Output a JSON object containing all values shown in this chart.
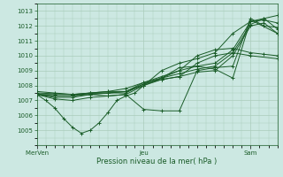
{
  "xlabel": "Pression niveau de la mer( hPa )",
  "background_color": "#cce8e2",
  "grid_color": "#aaccbb",
  "line_color": "#1a5c28",
  "ylim": [
    1004.0,
    1013.5
  ],
  "yticks": [
    1005,
    1006,
    1007,
    1008,
    1009,
    1010,
    1011,
    1012,
    1013
  ],
  "xtick_labels": [
    "Mer​Ven",
    "Jeu",
    "Sam"
  ],
  "xtick_positions": [
    0,
    96,
    192
  ],
  "xlim": [
    0,
    216
  ],
  "lines": [
    [
      0,
      1007.4,
      8,
      1007.0,
      16,
      1006.5,
      24,
      1005.8,
      32,
      1005.2,
      40,
      1004.8,
      48,
      1005.0,
      56,
      1005.5,
      64,
      1006.2,
      72,
      1007.0,
      80,
      1007.3,
      88,
      1007.5,
      96,
      1008.0,
      112,
      1009.0,
      128,
      1009.5,
      144,
      1009.8,
      160,
      1010.2,
      176,
      1011.5,
      192,
      1012.3,
      204,
      1012.5,
      216,
      1011.8
    ],
    [
      0,
      1007.4,
      16,
      1007.1,
      32,
      1007.0,
      48,
      1007.2,
      64,
      1007.3,
      80,
      1007.4,
      96,
      1008.0,
      112,
      1008.4,
      128,
      1008.6,
      144,
      1008.9,
      160,
      1009.0,
      176,
      1010.0,
      192,
      1012.0,
      204,
      1012.2,
      216,
      1011.5
    ],
    [
      0,
      1007.4,
      16,
      1007.2,
      32,
      1007.2,
      48,
      1007.4,
      64,
      1007.5,
      80,
      1007.5,
      96,
      1008.1,
      112,
      1008.5,
      128,
      1008.8,
      144,
      1009.1,
      160,
      1009.3,
      176,
      1010.2,
      192,
      1012.1,
      204,
      1012.5,
      216,
      1012.7
    ],
    [
      0,
      1007.4,
      16,
      1007.3,
      32,
      1007.3,
      48,
      1007.5,
      64,
      1007.6,
      80,
      1007.6,
      96,
      1008.2,
      112,
      1008.6,
      128,
      1009.0,
      144,
      1009.3,
      160,
      1009.5,
      176,
      1010.4,
      192,
      1012.3,
      204,
      1012.4,
      216,
      1012.2
    ],
    [
      0,
      1007.5,
      32,
      1007.4,
      64,
      1007.5,
      80,
      1007.6,
      96,
      1008.1,
      112,
      1008.4,
      128,
      1008.6,
      144,
      1009.5,
      160,
      1010.0,
      176,
      1010.2,
      192,
      1010.0,
      216,
      1009.8
    ],
    [
      0,
      1007.6,
      16,
      1007.5,
      32,
      1007.4,
      48,
      1007.5,
      64,
      1007.6,
      80,
      1007.8,
      96,
      1008.2,
      112,
      1008.5,
      128,
      1009.2,
      144,
      1009.3,
      160,
      1009.1,
      176,
      1008.5,
      192,
      1012.4,
      216,
      1011.5
    ],
    [
      0,
      1007.4,
      16,
      1007.3,
      32,
      1007.3,
      48,
      1007.4,
      64,
      1007.3,
      80,
      1007.4,
      96,
      1006.4,
      112,
      1006.3,
      128,
      1006.3,
      144,
      1009.0,
      160,
      1009.2,
      176,
      1009.3,
      192,
      1012.5,
      204,
      1012.0,
      216,
      1011.9
    ],
    [
      0,
      1007.4,
      16,
      1007.4,
      32,
      1007.4,
      48,
      1007.5,
      64,
      1007.5,
      80,
      1007.6,
      96,
      1008.0,
      112,
      1008.5,
      128,
      1009.0,
      144,
      1010.0,
      160,
      1010.4,
      176,
      1010.5,
      192,
      1010.2,
      204,
      1010.1,
      216,
      1010.0
    ]
  ]
}
